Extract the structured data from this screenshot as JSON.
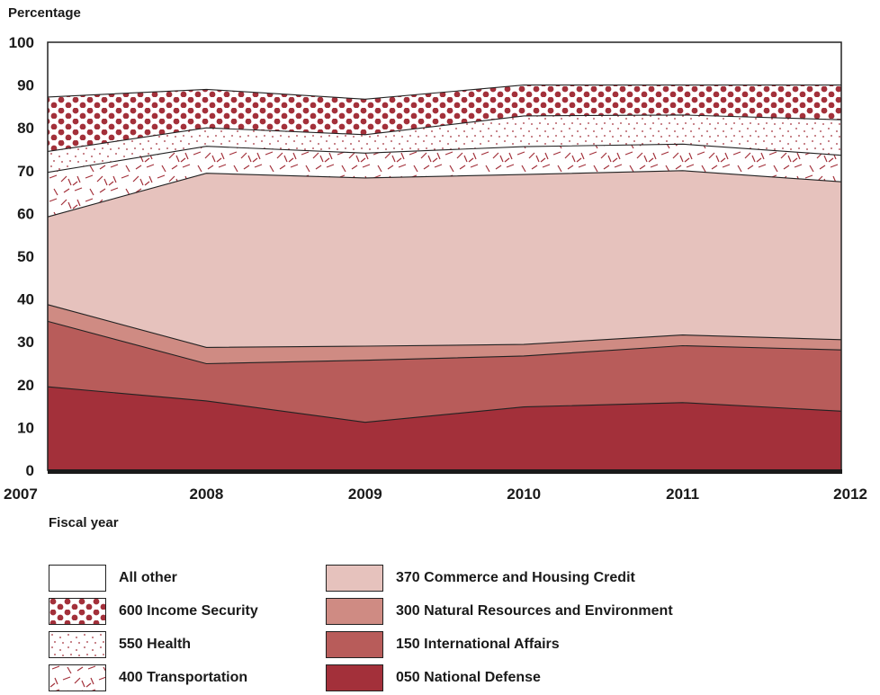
{
  "chart_data": {
    "type": "area",
    "stacked": true,
    "ylabel": "Percentage",
    "xlabel": "Fiscal year",
    "x": [
      "2007",
      "2008",
      "2009",
      "2010",
      "2011",
      "2012"
    ],
    "ylim": [
      0,
      100
    ],
    "yticks": [
      "0",
      "10",
      "20",
      "30",
      "40",
      "50",
      "60",
      "70",
      "80",
      "90",
      "100"
    ],
    "series": [
      {
        "name": "050 National Defense",
        "values": [
          19.5,
          16.2,
          11.2,
          14.8,
          15.8,
          13.8
        ],
        "color": "#a3303a",
        "pattern": "solid"
      },
      {
        "name": "150 International Affairs",
        "values": [
          15.3,
          8.7,
          14.5,
          11.9,
          13.3,
          14.3
        ],
        "color": "#b85c5a",
        "pattern": "solid"
      },
      {
        "name": "300 Natural Resources and Environment",
        "values": [
          3.9,
          3.8,
          3.3,
          2.7,
          2.5,
          2.4
        ],
        "color": "#cf8b83",
        "pattern": "solid"
      },
      {
        "name": "370 Commerce and Housing Credit",
        "values": [
          20.5,
          40.7,
          39.3,
          39.7,
          38.4,
          36.9
        ],
        "color": "#e6c2bd",
        "pattern": "solid"
      },
      {
        "name": "400 Transportation",
        "values": [
          10.4,
          6.3,
          5.8,
          6.5,
          6.2,
          6.2
        ],
        "color": "#a3303a",
        "pattern": "dashes"
      },
      {
        "name": "550 Health",
        "values": [
          4.9,
          4.3,
          4.3,
          7.2,
          6.8,
          8.3
        ],
        "color": "#a3303a",
        "pattern": "dots"
      },
      {
        "name": "600 Income Security",
        "values": [
          12.7,
          9.0,
          8.3,
          7.2,
          7.0,
          8.1
        ],
        "color": "#a3303a",
        "pattern": "circles"
      },
      {
        "name": "All other",
        "values": [
          12.8,
          11.0,
          13.3,
          10.0,
          10.0,
          10.0
        ],
        "color": "#ffffff",
        "pattern": "solid"
      }
    ],
    "legend_order": [
      "All other",
      "600 Income Security",
      "550 Health",
      "400 Transportation",
      "370 Commerce and Housing Credit",
      "300 Natural Resources and Environment",
      "150 International Affairs",
      "050 National Defense"
    ],
    "grid": false,
    "legend_position": "bottom"
  }
}
